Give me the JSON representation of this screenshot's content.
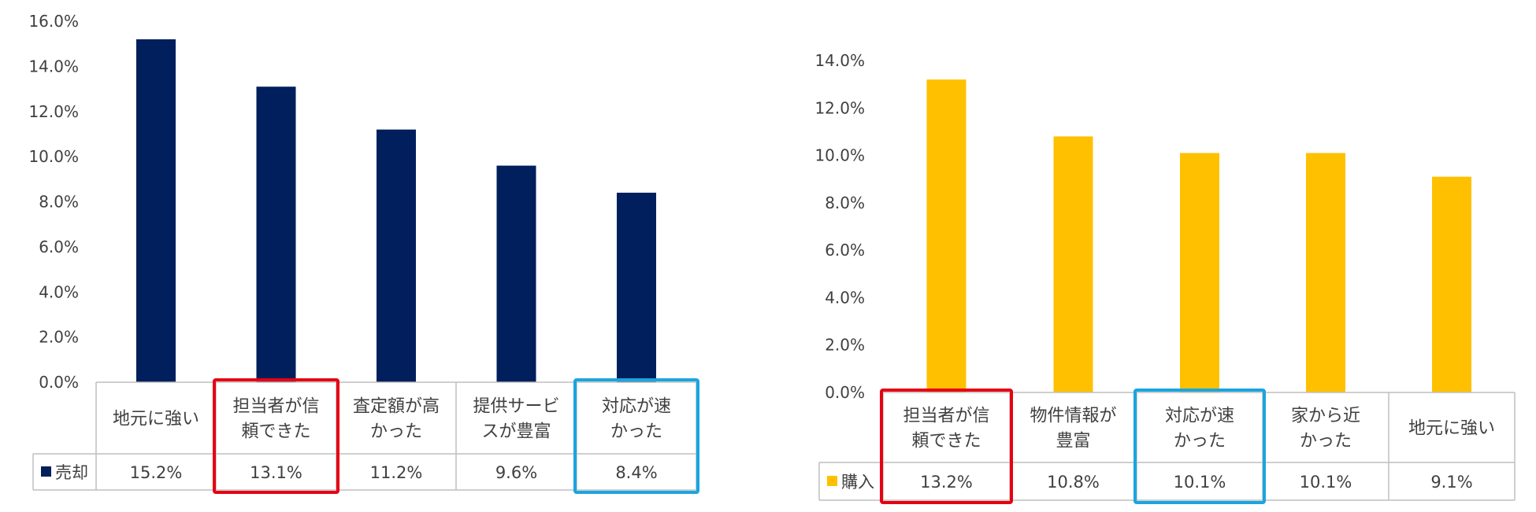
{
  "chart_data": [
    {
      "type": "bar",
      "series": [
        {
          "name": "売却",
          "color": "#001F5C",
          "categories": [
            [
              "地元に強い"
            ],
            [
              "担当者が信",
              "頼できた"
            ],
            [
              "査定額が高",
              "かった"
            ],
            [
              "提供サービ",
              "スが豊富"
            ],
            [
              "対応が速",
              "かった"
            ]
          ],
          "values": [
            0.152,
            0.131,
            0.112,
            0.096,
            0.084
          ],
          "labels": [
            "15.2%",
            "13.1%",
            "11.2%",
            "9.6%",
            "8.4%"
          ]
        }
      ],
      "ylim": [
        0,
        0.16
      ],
      "yticks": [
        "0.0%",
        "2.0%",
        "4.0%",
        "6.0%",
        "8.0%",
        "10.0%",
        "12.0%",
        "14.0%",
        "16.0%"
      ],
      "highlight": [
        {
          "index": 1,
          "color": "#E60012"
        },
        {
          "index": 4,
          "color": "#1AA5E0"
        }
      ],
      "data_table": true
    },
    {
      "type": "bar",
      "series": [
        {
          "name": "購入",
          "color": "#FFC000",
          "categories": [
            [
              "担当者が信",
              "頼できた"
            ],
            [
              "物件情報が",
              "豊富"
            ],
            [
              "対応が速",
              "かった"
            ],
            [
              "家から近",
              "かった"
            ],
            [
              "地元に強い"
            ]
          ],
          "values": [
            0.132,
            0.108,
            0.101,
            0.101,
            0.091
          ],
          "labels": [
            "13.2%",
            "10.8%",
            "10.1%",
            "10.1%",
            "9.1%"
          ]
        }
      ],
      "ylim": [
        0,
        0.14
      ],
      "yticks": [
        "0.0%",
        "2.0%",
        "4.0%",
        "6.0%",
        "8.0%",
        "10.0%",
        "12.0%",
        "14.0%"
      ],
      "highlight": [
        {
          "index": 0,
          "color": "#E60012"
        },
        {
          "index": 2,
          "color": "#1AA5E0"
        }
      ],
      "data_table": true
    }
  ]
}
